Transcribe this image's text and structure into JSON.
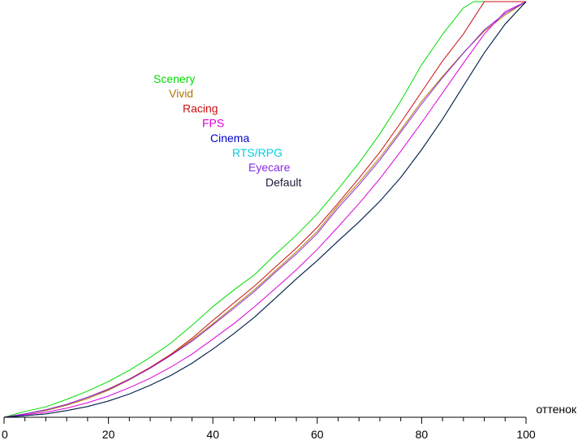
{
  "chart_data": {
    "type": "line",
    "title": "",
    "xlabel": "оттенок",
    "ylabel": "",
    "xlim": [
      0,
      100
    ],
    "ylim": [
      0,
      1
    ],
    "grid": false,
    "legend_position": "top-center",
    "x_ticks": [
      0,
      20,
      40,
      60,
      80,
      100
    ],
    "x_tick_labels": [
      "0",
      "20",
      "40",
      "60",
      "80",
      "100"
    ],
    "series": [
      {
        "name": "Scenery",
        "color": "#00dd00",
        "x": [
          0,
          4,
          8,
          12,
          16,
          20,
          24,
          28,
          32,
          36,
          40,
          44,
          48,
          52,
          56,
          60,
          64,
          68,
          72,
          76,
          80,
          84,
          88,
          90,
          92,
          100
        ],
        "y": [
          0.0,
          0.014,
          0.025,
          0.043,
          0.063,
          0.086,
          0.113,
          0.144,
          0.179,
          0.221,
          0.266,
          0.306,
          0.343,
          0.392,
          0.438,
          0.489,
          0.549,
          0.612,
          0.682,
          0.761,
          0.848,
          0.921,
          0.985,
          1.0,
          1.0,
          1.0
        ]
      },
      {
        "name": "Vivid",
        "color": "#b07800",
        "x": [
          0,
          4,
          8,
          12,
          16,
          20,
          24,
          28,
          32,
          36,
          40,
          44,
          48,
          52,
          56,
          60,
          64,
          68,
          72,
          76,
          80,
          84,
          88,
          92,
          96,
          100
        ],
        "y": [
          0.0,
          0.008,
          0.016,
          0.029,
          0.045,
          0.065,
          0.09,
          0.118,
          0.15,
          0.186,
          0.225,
          0.266,
          0.307,
          0.353,
          0.398,
          0.447,
          0.51,
          0.565,
          0.625,
          0.691,
          0.76,
          0.82,
          0.877,
          0.929,
          0.968,
          1.0
        ]
      },
      {
        "name": "Racing",
        "color": "#cc1010",
        "x": [
          0,
          4,
          8,
          12,
          16,
          20,
          24,
          28,
          32,
          36,
          40,
          44,
          48,
          52,
          56,
          60,
          64,
          68,
          72,
          76,
          80,
          84,
          88,
          92,
          96,
          100
        ],
        "y": [
          0.0,
          0.008,
          0.018,
          0.031,
          0.048,
          0.068,
          0.092,
          0.12,
          0.152,
          0.19,
          0.233,
          0.275,
          0.316,
          0.362,
          0.407,
          0.457,
          0.515,
          0.575,
          0.638,
          0.709,
          0.783,
          0.857,
          0.922,
          1.0,
          1.0,
          1.0
        ]
      },
      {
        "name": "FPS",
        "color": "#dd00dd",
        "x": [
          0,
          4,
          8,
          12,
          16,
          20,
          24,
          28,
          32,
          36,
          40,
          44,
          48,
          52,
          56,
          60,
          64,
          68,
          72,
          76,
          80,
          84,
          88,
          92,
          96,
          100
        ],
        "y": [
          0.0,
          0.006,
          0.012,
          0.022,
          0.035,
          0.051,
          0.071,
          0.094,
          0.121,
          0.152,
          0.188,
          0.225,
          0.266,
          0.31,
          0.355,
          0.404,
          0.458,
          0.514,
          0.574,
          0.64,
          0.709,
          0.78,
          0.852,
          0.922,
          0.976,
          1.0
        ]
      },
      {
        "name": "Cinema",
        "color": "#0000cc",
        "x": [
          0,
          4,
          8,
          12,
          16,
          20,
          24,
          28,
          32,
          36,
          40,
          44,
          48,
          52,
          56,
          60,
          64,
          68,
          72,
          76,
          80,
          84,
          88,
          92,
          96,
          100
        ],
        "y": [
          0.0,
          0.004,
          0.008,
          0.016,
          0.026,
          0.039,
          0.056,
          0.077,
          0.101,
          0.13,
          0.164,
          0.201,
          0.241,
          0.287,
          0.333,
          0.377,
          0.424,
          0.47,
          0.52,
          0.577,
          0.644,
          0.717,
          0.797,
          0.877,
          0.946,
          1.0
        ]
      },
      {
        "name": "RTS/RPG",
        "color": "#00d0e0",
        "x": [
          0,
          4,
          8,
          12,
          16,
          20,
          24,
          28,
          32,
          36,
          40,
          44,
          48,
          52,
          56,
          60,
          64,
          68,
          72,
          76,
          80,
          84,
          88,
          92,
          96,
          100
        ],
        "y": [
          0.0,
          0.004,
          0.008,
          0.016,
          0.026,
          0.039,
          0.056,
          0.077,
          0.101,
          0.13,
          0.164,
          0.201,
          0.241,
          0.287,
          0.333,
          0.377,
          0.424,
          0.47,
          0.52,
          0.577,
          0.644,
          0.717,
          0.797,
          0.877,
          0.946,
          1.0
        ]
      },
      {
        "name": "Eyecare",
        "color": "#8a2be2",
        "x": [
          0,
          4,
          8,
          12,
          16,
          20,
          24,
          28,
          32,
          36,
          40,
          44,
          48,
          52,
          56,
          60,
          64,
          68,
          72,
          76,
          80,
          84,
          88,
          92,
          96,
          100
        ],
        "y": [
          0.0,
          0.008,
          0.018,
          0.031,
          0.048,
          0.067,
          0.091,
          0.118,
          0.149,
          0.183,
          0.222,
          0.262,
          0.303,
          0.349,
          0.393,
          0.442,
          0.504,
          0.559,
          0.619,
          0.686,
          0.754,
          0.817,
          0.876,
          0.932,
          0.972,
          1.0
        ]
      },
      {
        "name": "Default",
        "color": "#1a1a3a",
        "x": [
          0,
          4,
          8,
          12,
          16,
          20,
          24,
          28,
          32,
          36,
          40,
          44,
          48,
          52,
          56,
          60,
          64,
          68,
          72,
          76,
          80,
          84,
          88,
          92,
          96,
          100
        ],
        "y": [
          0.0,
          0.004,
          0.008,
          0.016,
          0.026,
          0.039,
          0.056,
          0.077,
          0.101,
          0.13,
          0.164,
          0.201,
          0.241,
          0.287,
          0.333,
          0.377,
          0.424,
          0.47,
          0.52,
          0.577,
          0.644,
          0.717,
          0.797,
          0.877,
          0.946,
          1.0
        ]
      }
    ]
  }
}
